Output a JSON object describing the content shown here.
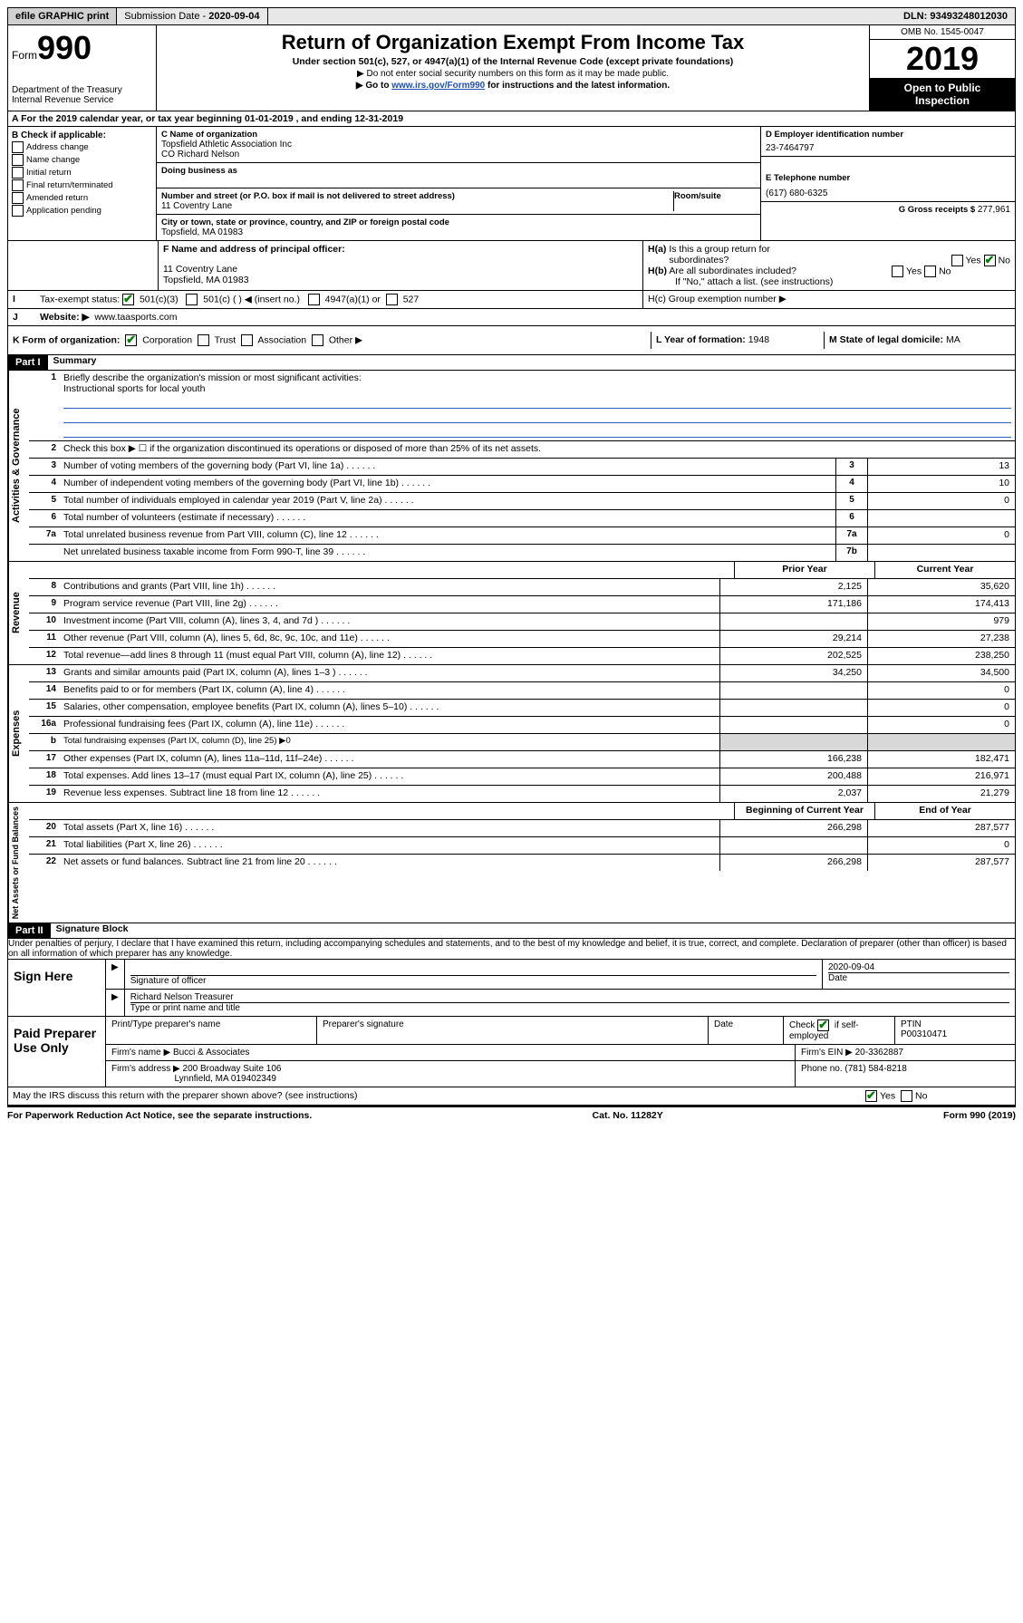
{
  "topbar": {
    "efile": "efile GRAPHIC print",
    "submission_label": "Submission Date - ",
    "submission_date": "2020-09-04",
    "dln_label": "DLN: ",
    "dln": "93493248012030"
  },
  "header": {
    "form_prefix": "Form",
    "form_num": "990",
    "dept1": "Department of the Treasury",
    "dept2": "Internal Revenue Service",
    "title": "Return of Organization Exempt From Income Tax",
    "sub": "Under section 501(c), 527, or 4947(a)(1) of the Internal Revenue Code (except private foundations)",
    "note1": "▶ Do not enter social security numbers on this form as it may be made public.",
    "note2_pre": "▶ Go to ",
    "note2_link": "www.irs.gov/Form990",
    "note2_post": " for instructions and the latest information.",
    "omb": "OMB No. 1545-0047",
    "year": "2019",
    "open1": "Open to Public",
    "open2": "Inspection"
  },
  "lineA": "A  For the 2019 calendar year, or tax year beginning 01-01-2019   , and ending 12-31-2019",
  "sectionB": {
    "label": "B Check if applicable:",
    "items": [
      "Address change",
      "Name change",
      "Initial return",
      "Final return/terminated",
      "Amended return",
      "Application pending"
    ]
  },
  "sectionC": {
    "name_label": "C Name of organization",
    "name1": "Topsfield Athletic Association Inc",
    "name2": "CO Richard Nelson",
    "dba_label": "Doing business as",
    "addr_label": "Number and street (or P.O. box if mail is not delivered to street address)",
    "room_label": "Room/suite",
    "addr": "11 Coventry Lane",
    "city_label": "City or town, state or province, country, and ZIP or foreign postal code",
    "city": "Topsfield, MA  01983"
  },
  "sectionD": {
    "label": "D Employer identification number",
    "ein": "23-7464797",
    "phone_label": "E Telephone number",
    "phone": "(617) 680-6325",
    "gross_label": "G Gross receipts $ ",
    "gross": "277,961"
  },
  "sectionF": {
    "label": "F  Name and address of principal officer:",
    "addr1": "11 Coventry Lane",
    "addr2": "Topsfield, MA  01983"
  },
  "sectionH": {
    "a": "H(a)  Is this a group return for subordinates?",
    "b": "H(b)  Are all subordinates included?",
    "b_note": "If \"No,\" attach a list. (see instructions)",
    "c": "H(c)  Group exemption number ▶",
    "yes": "Yes",
    "no": "No"
  },
  "lineI": {
    "label": "Tax-exempt status:",
    "opts": [
      "501(c)(3)",
      "501(c) (  ) ◀ (insert no.)",
      "4947(a)(1) or",
      "527"
    ]
  },
  "lineJ": {
    "label": "Website: ▶",
    "val": "www.taasports.com"
  },
  "lineK": {
    "label": "K Form of organization:",
    "opts": [
      "Corporation",
      "Trust",
      "Association",
      "Other ▶"
    ],
    "L": "L Year of formation: ",
    "Lval": "1948",
    "M": "M State of legal domicile: ",
    "Mval": "MA"
  },
  "partI": {
    "tag": "Part I",
    "title": "Summary"
  },
  "summary": {
    "gov_label": "Activities & Governance",
    "rev_label": "Revenue",
    "exp_label": "Expenses",
    "net_label": "Net Assets or Fund Balances",
    "q1_label": "Briefly describe the organization's mission or most significant activities:",
    "q1_val": "Instructional sports for local youth",
    "q2": "Check this box ▶ ☐  if the organization discontinued its operations or disposed of more than 25% of its net assets.",
    "prior": "Prior Year",
    "current": "Current Year",
    "begin": "Beginning of Current Year",
    "end": "End of Year",
    "rows_ag": [
      {
        "n": "3",
        "d": "Number of voting members of the governing body (Part VI, line 1a)",
        "box": "3",
        "v": "13"
      },
      {
        "n": "4",
        "d": "Number of independent voting members of the governing body (Part VI, line 1b)",
        "box": "4",
        "v": "10"
      },
      {
        "n": "5",
        "d": "Total number of individuals employed in calendar year 2019 (Part V, line 2a)",
        "box": "5",
        "v": "0"
      },
      {
        "n": "6",
        "d": "Total number of volunteers (estimate if necessary)",
        "box": "6",
        "v": ""
      },
      {
        "n": "7a",
        "d": "Total unrelated business revenue from Part VIII, column (C), line 12",
        "box": "7a",
        "v": "0"
      },
      {
        "n": "",
        "d": "Net unrelated business taxable income from Form 990-T, line 39",
        "box": "7b",
        "v": ""
      }
    ],
    "rows_rev": [
      {
        "n": "8",
        "d": "Contributions and grants (Part VIII, line 1h)",
        "p": "2,125",
        "c": "35,620"
      },
      {
        "n": "9",
        "d": "Program service revenue (Part VIII, line 2g)",
        "p": "171,186",
        "c": "174,413"
      },
      {
        "n": "10",
        "d": "Investment income (Part VIII, column (A), lines 3, 4, and 7d )",
        "p": "",
        "c": "979"
      },
      {
        "n": "11",
        "d": "Other revenue (Part VIII, column (A), lines 5, 6d, 8c, 9c, 10c, and 11e)",
        "p": "29,214",
        "c": "27,238"
      },
      {
        "n": "12",
        "d": "Total revenue—add lines 8 through 11 (must equal Part VIII, column (A), line 12)",
        "p": "202,525",
        "c": "238,250"
      }
    ],
    "rows_exp": [
      {
        "n": "13",
        "d": "Grants and similar amounts paid (Part IX, column (A), lines 1–3 )",
        "p": "34,250",
        "c": "34,500"
      },
      {
        "n": "14",
        "d": "Benefits paid to or for members (Part IX, column (A), line 4)",
        "p": "",
        "c": "0"
      },
      {
        "n": "15",
        "d": "Salaries, other compensation, employee benefits (Part IX, column (A), lines 5–10)",
        "p": "",
        "c": "0"
      },
      {
        "n": "16a",
        "d": "Professional fundraising fees (Part IX, column (A), line 11e)",
        "p": "",
        "c": "0"
      },
      {
        "n": "b",
        "d": "Total fundraising expenses (Part IX, column (D), line 25) ▶0",
        "grey": true
      },
      {
        "n": "17",
        "d": "Other expenses (Part IX, column (A), lines 11a–11d, 11f–24e)",
        "p": "166,238",
        "c": "182,471"
      },
      {
        "n": "18",
        "d": "Total expenses. Add lines 13–17 (must equal Part IX, column (A), line 25)",
        "p": "200,488",
        "c": "216,971"
      },
      {
        "n": "19",
        "d": "Revenue less expenses. Subtract line 18 from line 12",
        "p": "2,037",
        "c": "21,279"
      }
    ],
    "rows_net": [
      {
        "n": "20",
        "d": "Total assets (Part X, line 16)",
        "p": "266,298",
        "c": "287,577"
      },
      {
        "n": "21",
        "d": "Total liabilities (Part X, line 26)",
        "p": "",
        "c": "0"
      },
      {
        "n": "22",
        "d": "Net assets or fund balances. Subtract line 21 from line 20",
        "p": "266,298",
        "c": "287,577"
      }
    ]
  },
  "partII": {
    "tag": "Part II",
    "title": "Signature Block"
  },
  "perjury": "Under penalties of perjury, I declare that I have examined this return, including accompanying schedules and statements, and to the best of my knowledge and belief, it is true, correct, and complete. Declaration of preparer (other than officer) is based on all information of which preparer has any knowledge.",
  "sign": {
    "label": "Sign Here",
    "sig_officer": "Signature of officer",
    "date": "2020-09-04",
    "date_label": "Date",
    "name": "Richard Nelson Treasurer",
    "name_label": "Type or print name and title"
  },
  "preparer": {
    "label": "Paid Preparer Use Only",
    "print_label": "Print/Type preparer's name",
    "sig_label": "Preparer's signature",
    "date_label": "Date",
    "check_label": "Check",
    "check_label2": "if self-employed",
    "ptin_label": "PTIN",
    "ptin": "P00310471",
    "firm_name_label": "Firm's name   ▶ ",
    "firm_name": "Bucci & Associates",
    "firm_ein_label": "Firm's EIN ▶ ",
    "firm_ein": "20-3362887",
    "firm_addr_label": "Firm's address ▶ ",
    "firm_addr1": "200 Broadway Suite 106",
    "firm_addr2": "Lynnfield, MA  019402349",
    "phone_label": "Phone no. ",
    "phone": "(781) 584-8218"
  },
  "discuss": {
    "q": "May the IRS discuss this return with the preparer shown above? (see instructions)",
    "yes": "Yes",
    "no": "No"
  },
  "footer": {
    "left": "For Paperwork Reduction Act Notice, see the separate instructions.",
    "mid": "Cat. No. 11282Y",
    "right": "Form 990 (2019)"
  }
}
